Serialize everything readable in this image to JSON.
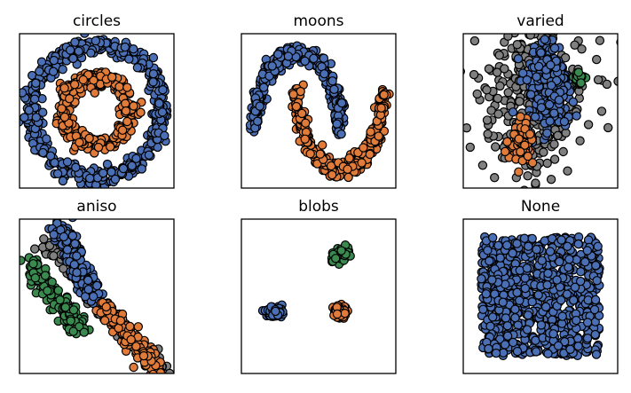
{
  "chart_data": [
    {
      "type": "scatter",
      "title": "circles",
      "xlim": [
        -1.15,
        1.15
      ],
      "ylim": [
        -1.15,
        1.15
      ],
      "grid": false,
      "ticks": false,
      "series": [
        {
          "color": "#4a6fb5",
          "shape": "ring",
          "cx": 0,
          "cy": 0,
          "radius": 0.98,
          "spread": 0.07,
          "count": 460
        },
        {
          "color": "#e07b39",
          "shape": "ring",
          "cx": 0,
          "cy": 0,
          "radius": 0.5,
          "spread": 0.07,
          "count": 300
        }
      ]
    },
    {
      "type": "scatter",
      "title": "moons",
      "xlim": [
        -1.3,
        2.3
      ],
      "ylim": [
        -0.75,
        1.25
      ],
      "grid": false,
      "ticks": false,
      "series": [
        {
          "color": "#4a6fb5",
          "shape": "arc",
          "cx": 0.0,
          "cy": 0.0,
          "radius": 1.0,
          "start": 0,
          "end": 180,
          "spread": 0.06,
          "count": 330
        },
        {
          "color": "#e07b39",
          "shape": "arc",
          "cx": 1.0,
          "cy": 0.5,
          "radius": 1.0,
          "start": 180,
          "end": 360,
          "spread": 0.06,
          "count": 330
        }
      ]
    },
    {
      "type": "scatter",
      "title": "varied",
      "xlim": [
        -3.2,
        3.2
      ],
      "ylim": [
        -3.2,
        3.2
      ],
      "grid": false,
      "ticks": false,
      "series": [
        {
          "color": "#808080",
          "shape": "blob",
          "cx": -0.3,
          "cy": 0.6,
          "sx": 1.15,
          "sy": 1.6,
          "count": 340
        },
        {
          "color": "#4a6fb5",
          "shape": "blob",
          "cx": 0.3,
          "cy": 0.9,
          "sx": 0.45,
          "sy": 0.95,
          "count": 300
        },
        {
          "color": "#e07b39",
          "shape": "blob",
          "cx": -0.8,
          "cy": -1.3,
          "sx": 0.22,
          "sy": 0.38,
          "count": 90
        },
        {
          "color": "#3a8a50",
          "shape": "blob",
          "cx": 1.6,
          "cy": 1.35,
          "sx": 0.12,
          "sy": 0.13,
          "count": 30
        }
      ]
    },
    {
      "type": "scatter",
      "title": "aniso",
      "xlim": [
        -2.2,
        2.2
      ],
      "ylim": [
        -2.2,
        2.2
      ],
      "grid": false,
      "ticks": false,
      "series": [
        {
          "color": "#808080",
          "shape": "band",
          "x0": -1.55,
          "y0": 1.6,
          "x1": 2.05,
          "y1": -2.35,
          "spread": 0.12,
          "count": 120
        },
        {
          "color": "#4a6fb5",
          "shape": "band",
          "x0": -1.15,
          "y0": 2.05,
          "x1": -0.1,
          "y1": 0.0,
          "spread": 0.14,
          "count": 190
        },
        {
          "color": "#3a8a50",
          "shape": "band",
          "x0": -1.95,
          "y0": 0.95,
          "x1": -0.45,
          "y1": -0.95,
          "spread": 0.13,
          "count": 150
        },
        {
          "color": "#e07b39",
          "shape": "band",
          "x0": 0.15,
          "y0": -0.25,
          "x1": 1.75,
          "y1": -2.05,
          "spread": 0.14,
          "count": 180
        }
      ]
    },
    {
      "type": "scatter",
      "title": "blobs",
      "xlim": [
        -2.5,
        2.5
      ],
      "ylim": [
        -2.5,
        2.5
      ],
      "grid": false,
      "ticks": false,
      "series": [
        {
          "color": "#3a8a50",
          "shape": "blob",
          "cx": 0.7,
          "cy": 1.3,
          "sx": 0.13,
          "sy": 0.12,
          "count": 60
        },
        {
          "color": "#4a6fb5",
          "shape": "blob",
          "cx": -1.45,
          "cy": -0.5,
          "sx": 0.13,
          "sy": 0.1,
          "count": 60
        },
        {
          "color": "#e07b39",
          "shape": "blob",
          "cx": 0.7,
          "cy": -0.5,
          "sx": 0.12,
          "sy": 0.1,
          "count": 60
        }
      ]
    },
    {
      "type": "scatter",
      "title": "None",
      "xlim": [
        -0.15,
        1.15
      ],
      "ylim": [
        -0.15,
        1.15
      ],
      "grid": false,
      "ticks": false,
      "series": [
        {
          "color": "#4a6fb5",
          "shape": "uniform",
          "xmin": 0,
          "xmax": 1,
          "ymin": 0,
          "ymax": 1,
          "count": 800
        }
      ]
    }
  ]
}
